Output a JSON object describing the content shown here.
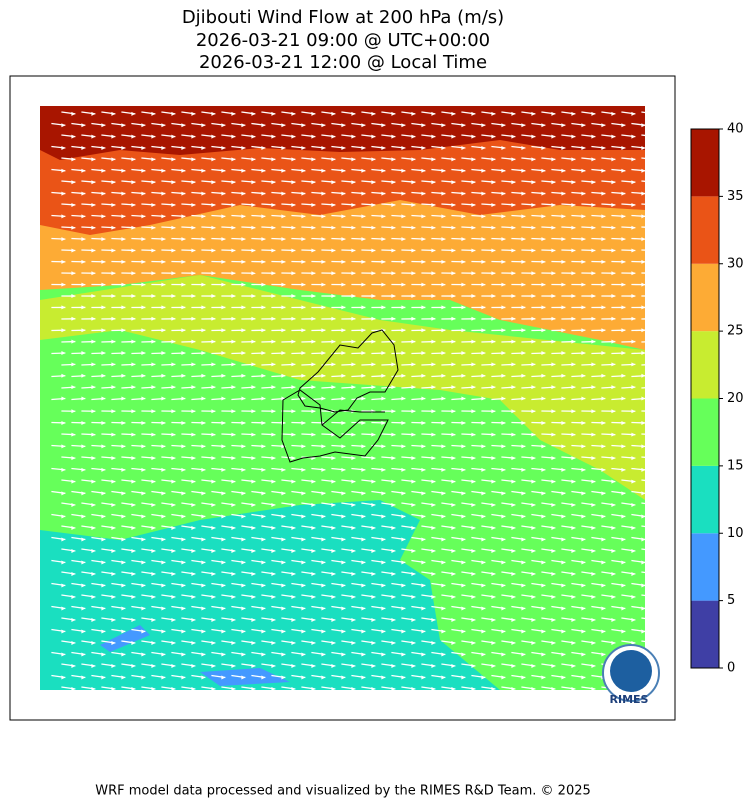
{
  "title_lines": [
    "Djibouti Wind Flow at 200 hPa (m/s)",
    "2026-03-21 09:00 @ UTC+00:00",
    "2026-03-21 12:00 @ Local Time"
  ],
  "colorbar": {
    "levels": [
      0,
      5,
      10,
      15,
      20,
      25,
      30,
      35,
      40
    ],
    "colors": [
      "#3f3fa5",
      "#4499ff",
      "#1adfc0",
      "#66ff5a",
      "#c8ec30",
      "#fdab35",
      "#ea5417",
      "#a81500"
    ]
  },
  "logo": "RIMES",
  "footer": "WRF model data processed and visualized by the RIMES R&D Team. © 2025"
}
